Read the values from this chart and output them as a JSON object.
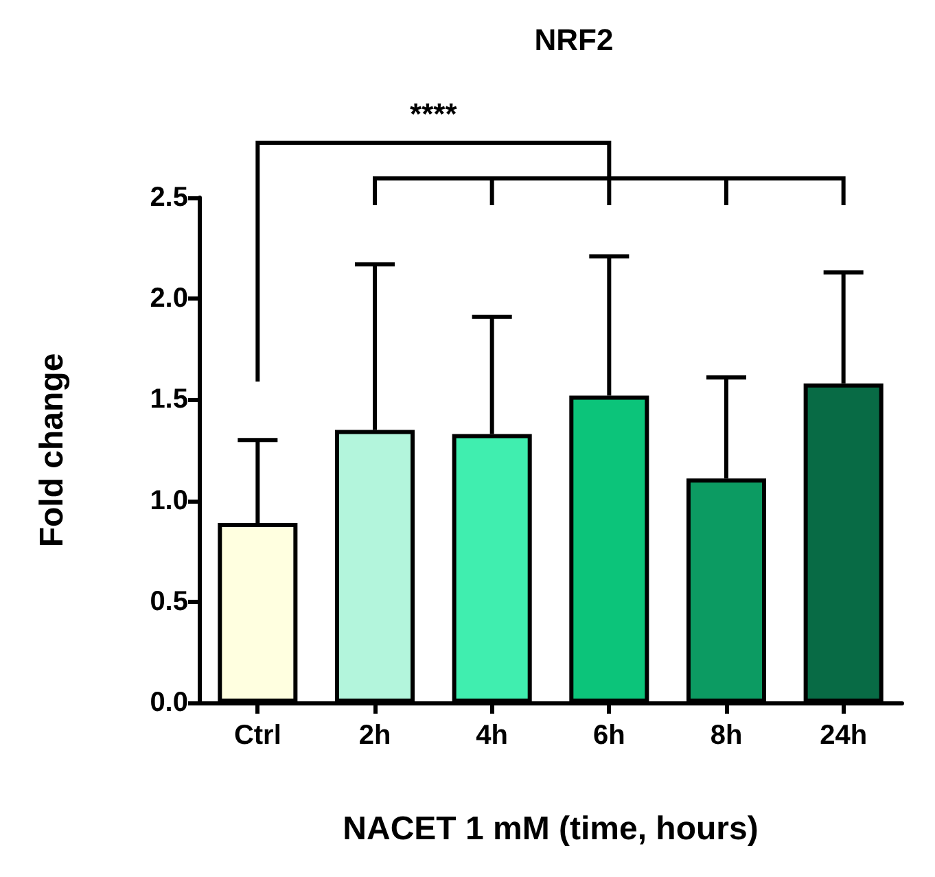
{
  "chart_data": {
    "type": "bar",
    "title": "NRF2",
    "xlabel": "NACET 1 mM (time, hours)",
    "ylabel": "Fold change",
    "categories": [
      "Ctrl",
      "2h",
      "4h",
      "6h",
      "8h",
      "24h"
    ],
    "values": [
      0.89,
      1.35,
      1.33,
      1.52,
      1.11,
      1.58
    ],
    "colors": [
      "#ffffe0",
      "#b3f5dc",
      "#40eeaf",
      "#0cc47a",
      "#0c9b62",
      "#086b45"
    ],
    "errors": [
      [
        0.89,
        1.3
      ],
      [
        1.35,
        2.17
      ],
      [
        1.33,
        1.91
      ],
      [
        1.52,
        2.21
      ],
      [
        1.11,
        1.61
      ],
      [
        1.58,
        2.13
      ]
    ],
    "ylim": [
      0,
      2.5
    ],
    "yticks": [
      {
        "value": 0,
        "label": "0.0"
      },
      {
        "value": 0.5,
        "label": "0.5"
      },
      {
        "value": 1,
        "label": "1.0"
      },
      {
        "value": 1.5,
        "label": "1.5"
      },
      {
        "value": 2,
        "label": "2.0"
      },
      {
        "value": 2.5,
        "label": "2.5"
      }
    ],
    "grid": false,
    "annotations": [
      "****"
    ]
  }
}
